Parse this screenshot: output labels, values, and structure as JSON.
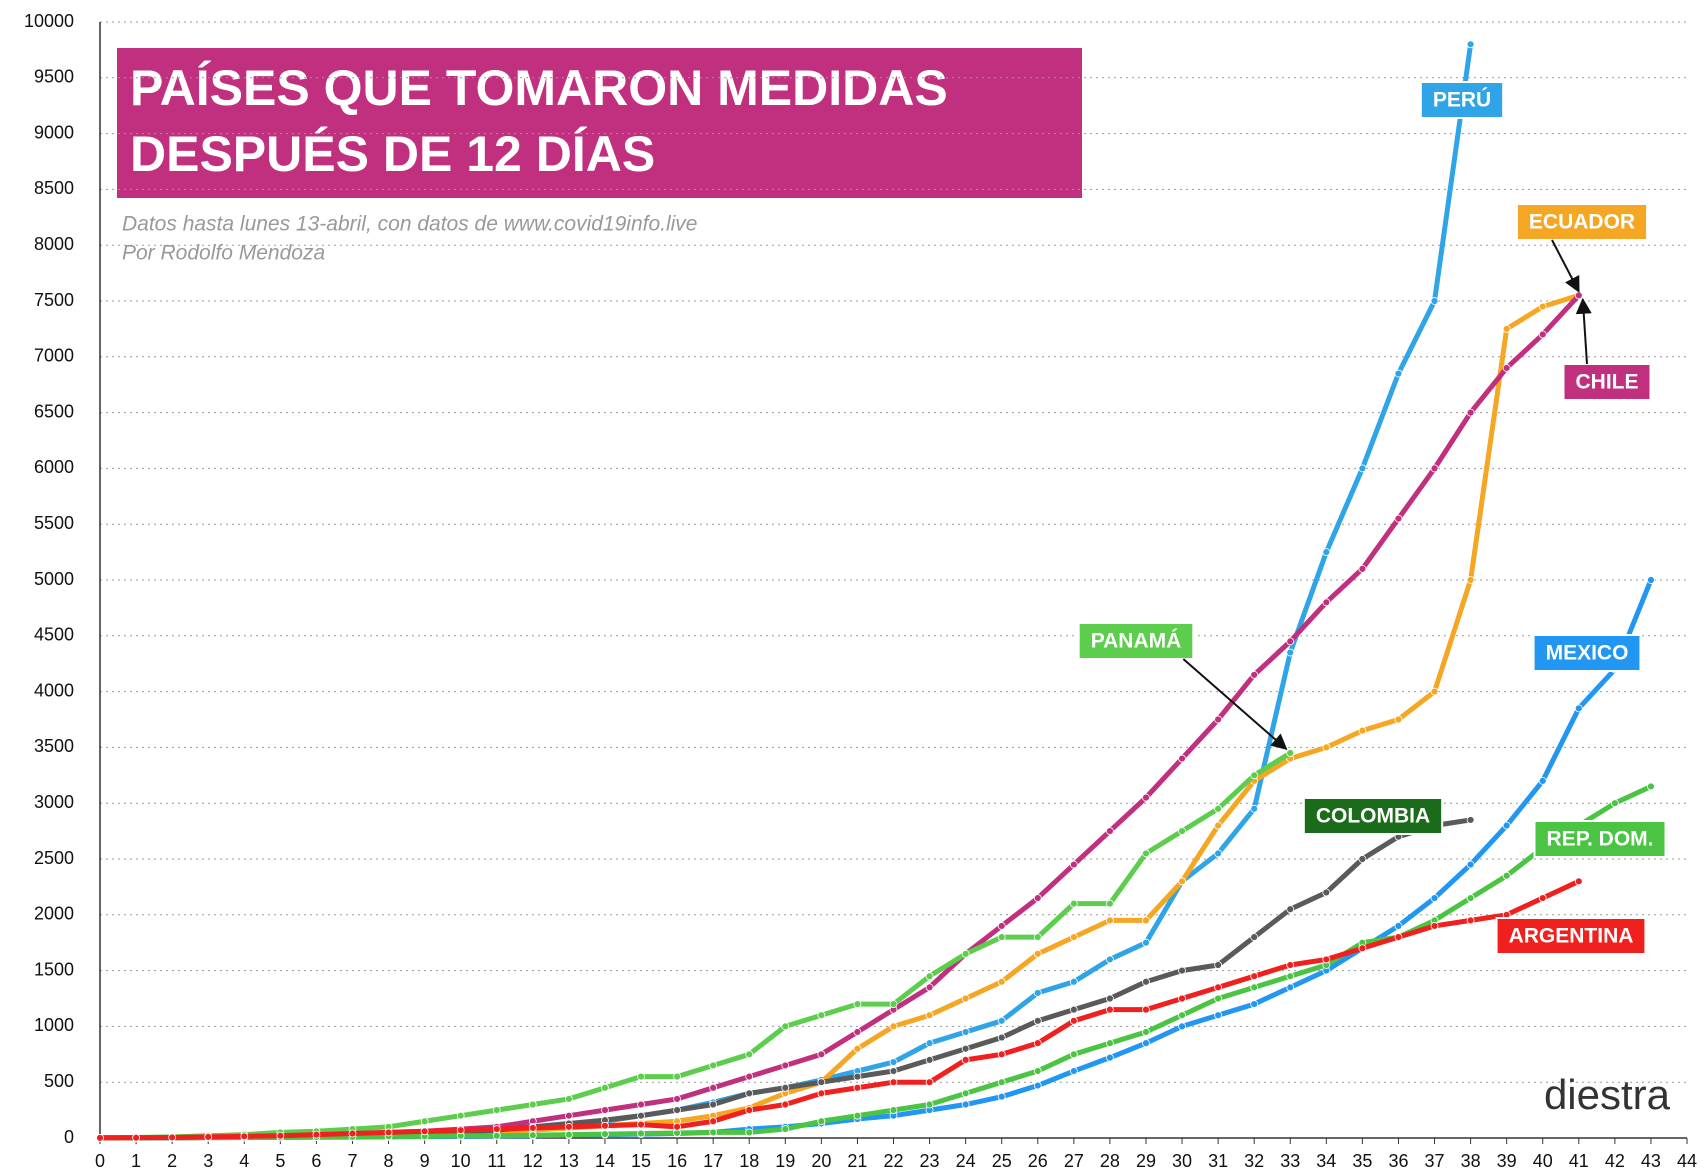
{
  "chart_data": {
    "type": "line",
    "title": [
      "PAÍSES QUE TOMARON MEDIDAS",
      "DESPUÉS DE 12 DÍAS"
    ],
    "subtitle": [
      "Datos hasta lunes 13-abril, con datos de www.covid19info.live",
      "Por Rodolfo Mendoza"
    ],
    "logo": "diestra",
    "x": [
      0,
      1,
      2,
      3,
      4,
      5,
      6,
      7,
      8,
      9,
      10,
      11,
      12,
      13,
      14,
      15,
      16,
      17,
      18,
      19,
      20,
      21,
      22,
      23,
      24,
      25,
      26,
      27,
      28,
      29,
      30,
      31,
      32,
      33,
      34,
      35,
      36,
      37,
      38,
      39,
      40,
      41,
      42,
      43
    ],
    "xlim": [
      0,
      44
    ],
    "xticks": [
      0,
      1,
      2,
      3,
      4,
      5,
      6,
      7,
      8,
      9,
      10,
      11,
      12,
      13,
      14,
      15,
      16,
      17,
      18,
      19,
      20,
      21,
      22,
      23,
      24,
      25,
      26,
      27,
      28,
      29,
      30,
      31,
      32,
      33,
      34,
      35,
      36,
      37,
      38,
      39,
      40,
      41,
      42,
      43,
      44
    ],
    "ylim": [
      0,
      10000
    ],
    "yticks": [
      0,
      500,
      1000,
      1500,
      2000,
      2500,
      3000,
      3500,
      4000,
      4500,
      5000,
      5500,
      6000,
      6500,
      7000,
      7500,
      8000,
      8500,
      9000,
      9500,
      10000
    ],
    "grid": true,
    "series": [
      {
        "name": "PERÚ",
        "color": "#2fa4e7",
        "values": [
          1,
          1,
          5,
          10,
          15,
          20,
          30,
          40,
          50,
          60,
          70,
          80,
          100,
          120,
          150,
          200,
          250,
          320,
          400,
          450,
          520,
          600,
          680,
          850,
          950,
          1050,
          1300,
          1400,
          1600,
          1750,
          2300,
          2550,
          2950,
          4350,
          5250,
          6000,
          6850,
          7500,
          9800,
          null,
          null,
          null,
          null,
          null
        ]
      },
      {
        "name": "ECUADOR",
        "color": "#f5a623",
        "values": [
          1,
          1,
          2,
          5,
          10,
          15,
          20,
          25,
          30,
          40,
          50,
          60,
          70,
          90,
          110,
          130,
          150,
          200,
          270,
          400,
          500,
          800,
          1000,
          1100,
          1250,
          1400,
          1650,
          1800,
          1950,
          1950,
          2300,
          2800,
          3200,
          3400,
          3500,
          3650,
          3750,
          4000,
          5000,
          7250,
          7450,
          7550,
          null,
          null
        ]
      },
      {
        "name": "CHILE",
        "color": "#c0307f",
        "values": [
          1,
          1,
          2,
          5,
          8,
          10,
          20,
          30,
          40,
          60,
          80,
          100,
          150,
          200,
          250,
          300,
          350,
          450,
          550,
          650,
          750,
          950,
          1150,
          1350,
          1650,
          1900,
          2150,
          2450,
          2750,
          3050,
          3400,
          3750,
          4150,
          4450,
          4800,
          5100,
          5550,
          6000,
          6500,
          6900,
          7200,
          7550,
          null,
          null
        ]
      },
      {
        "name": "PANAMÁ",
        "color": "#5ccd4c",
        "values": [
          1,
          5,
          10,
          20,
          30,
          50,
          60,
          80,
          100,
          150,
          200,
          250,
          300,
          350,
          450,
          550,
          550,
          650,
          750,
          1000,
          1100,
          1200,
          1200,
          1450,
          1650,
          1800,
          1800,
          2100,
          2100,
          2550,
          2750,
          2950,
          3250,
          3450,
          null,
          null,
          null,
          null,
          null,
          null,
          null,
          null,
          null,
          null
        ]
      },
      {
        "name": "COLOMBIA",
        "color": "#5a5a5a",
        "values": [
          1,
          1,
          2,
          3,
          5,
          10,
          15,
          20,
          30,
          40,
          50,
          70,
          100,
          130,
          160,
          200,
          250,
          300,
          400,
          450,
          500,
          550,
          600,
          700,
          800,
          900,
          1050,
          1150,
          1250,
          1400,
          1500,
          1550,
          1800,
          2050,
          2200,
          2500,
          2700,
          2800,
          2850,
          null,
          null,
          null,
          null,
          null
        ]
      },
      {
        "name": "MEXICO",
        "color": "#2196f3",
        "values": [
          1,
          2,
          3,
          4,
          5,
          6,
          7,
          8,
          10,
          12,
          15,
          18,
          20,
          25,
          30,
          35,
          40,
          50,
          80,
          100,
          130,
          170,
          200,
          250,
          300,
          370,
          470,
          600,
          720,
          850,
          1000,
          1100,
          1200,
          1350,
          1500,
          1700,
          1900,
          2150,
          2450,
          2800,
          3200,
          3850,
          4200,
          5000
        ]
      },
      {
        "name": "REP. DOM.",
        "color": "#4cc443",
        "values": [
          1,
          1,
          2,
          3,
          5,
          5,
          10,
          10,
          15,
          15,
          20,
          20,
          25,
          30,
          35,
          40,
          45,
          50,
          50,
          80,
          150,
          200,
          250,
          300,
          400,
          500,
          600,
          750,
          850,
          950,
          1100,
          1250,
          1350,
          1450,
          1550,
          1750,
          1800,
          1950,
          2150,
          2350,
          2600,
          2800,
          3000,
          3150
        ]
      },
      {
        "name": "ARGENTINA",
        "color": "#f0201e",
        "values": [
          1,
          2,
          5,
          10,
          15,
          20,
          30,
          40,
          50,
          60,
          70,
          80,
          90,
          100,
          110,
          120,
          100,
          150,
          250,
          300,
          400,
          450,
          500,
          500,
          700,
          750,
          850,
          1050,
          1150,
          1150,
          1250,
          1350,
          1450,
          1550,
          1600,
          1700,
          1800,
          1900,
          1950,
          2000,
          2150,
          2300,
          null,
          null
        ]
      }
    ]
  }
}
